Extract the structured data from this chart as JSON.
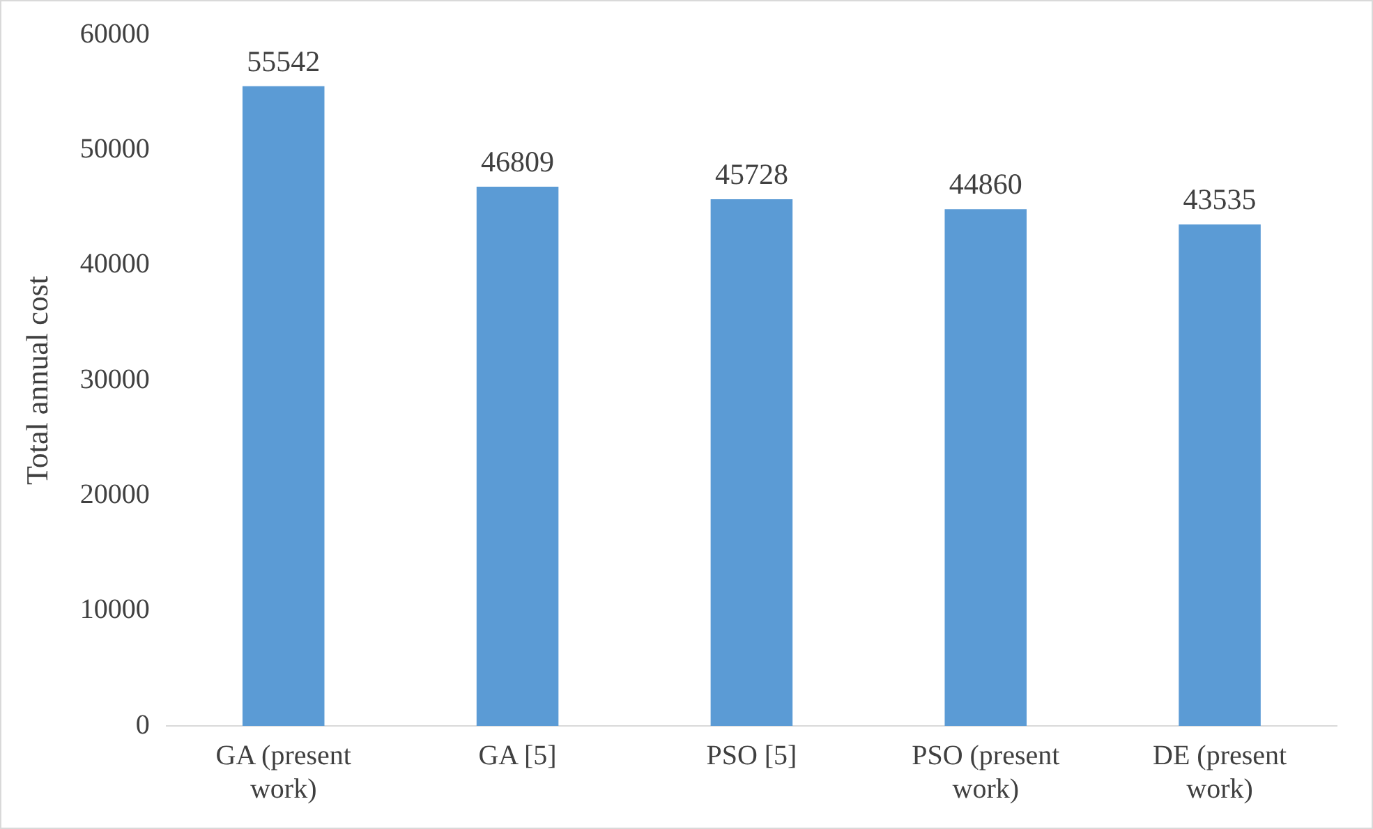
{
  "chart_data": {
    "type": "bar",
    "ylabel": "Total annual cost",
    "categories": [
      "GA (present work)",
      "GA [5]",
      "PSO [5]",
      "PSO (present work)",
      "DE (present work)"
    ],
    "values": [
      55542,
      46809,
      45728,
      44860,
      43535
    ],
    "color": "#5b9bd5",
    "ylim": [
      0,
      60000
    ],
    "yticks": [
      0,
      10000,
      20000,
      30000,
      40000,
      50000,
      60000
    ],
    "grid": false,
    "legend": false,
    "data_labels": true
  }
}
